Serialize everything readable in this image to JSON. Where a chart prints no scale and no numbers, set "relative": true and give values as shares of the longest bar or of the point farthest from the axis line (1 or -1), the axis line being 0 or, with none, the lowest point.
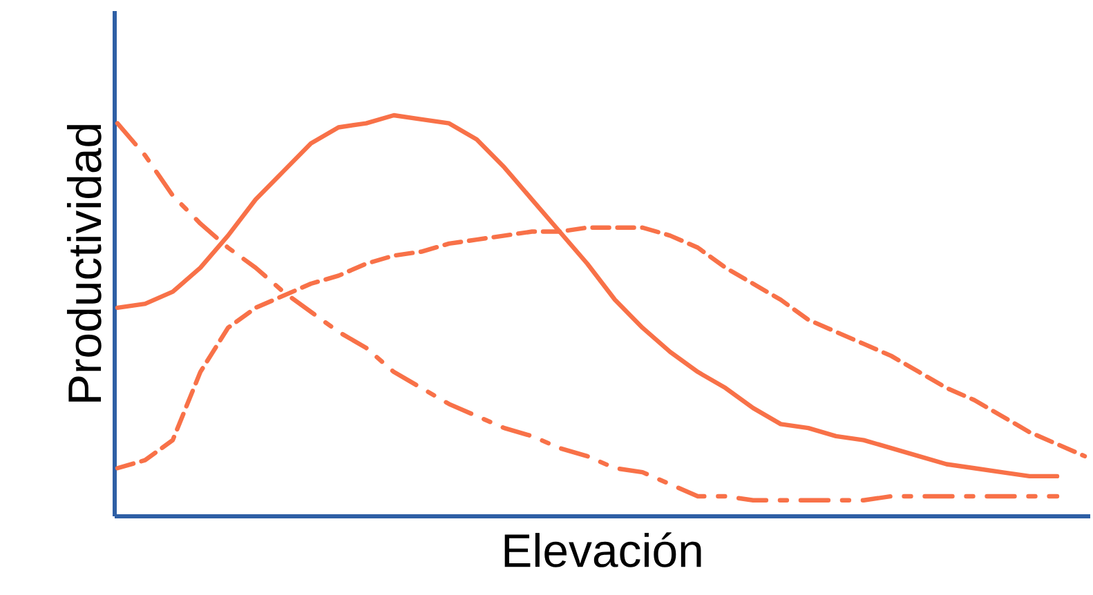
{
  "chart_data": {
    "type": "line",
    "relative": true,
    "xlabel": "Elevación",
    "ylabel": "Productividad",
    "marker": "none",
    "categories": [
      null,
      null,
      null,
      null,
      null,
      null,
      null,
      null,
      null,
      null,
      null,
      null,
      null,
      null,
      null,
      null,
      null,
      null,
      null,
      null,
      null,
      null,
      null,
      null,
      null,
      null,
      null,
      null,
      null,
      null,
      null,
      null,
      null,
      null,
      null,
      null
    ],
    "series": [
      {
        "color": "#f87148",
        "line_style": "solid",
        "values": [
          0.52,
          0.53,
          0.56,
          0.62,
          0.7,
          0.79,
          0.86,
          0.93,
          0.97,
          0.98,
          1.0,
          0.99,
          0.98,
          0.94,
          0.87,
          0.79,
          0.71,
          0.63,
          0.54,
          0.47,
          0.41,
          0.36,
          0.32,
          0.27,
          0.23,
          0.22,
          0.2,
          0.19,
          0.17,
          0.15,
          0.13,
          0.12,
          0.11,
          0.1,
          0.1,
          null
        ]
      },
      {
        "color": "#f87148",
        "line_style": "dashed",
        "values": [
          0.12,
          0.14,
          0.19,
          0.36,
          0.47,
          0.52,
          0.55,
          0.58,
          0.6,
          0.63,
          0.65,
          0.66,
          0.68,
          0.69,
          0.7,
          0.71,
          0.71,
          0.72,
          0.72,
          0.72,
          0.7,
          0.67,
          0.62,
          0.58,
          0.54,
          0.49,
          0.46,
          0.43,
          0.4,
          0.36,
          0.32,
          0.29,
          0.25,
          0.21,
          0.18,
          0.15
        ]
      },
      {
        "color": "#f87148",
        "line_style": "dashdot",
        "values": [
          0.98,
          0.9,
          0.8,
          0.73,
          0.67,
          0.62,
          0.56,
          0.51,
          0.46,
          0.42,
          0.36,
          0.32,
          0.28,
          0.25,
          0.22,
          0.2,
          0.17,
          0.15,
          0.12,
          0.11,
          0.08,
          0.05,
          0.05,
          0.04,
          0.04,
          0.04,
          0.04,
          0.04,
          0.05,
          0.05,
          0.05,
          0.05,
          0.05,
          0.05,
          0.05,
          null
        ]
      }
    ]
  }
}
